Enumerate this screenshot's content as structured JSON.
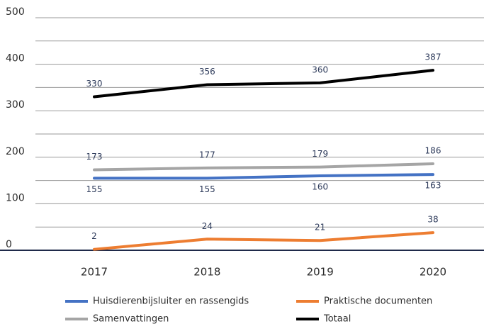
{
  "chart_data": {
    "type": "line",
    "categories": [
      "2017",
      "2018",
      "2019",
      "2020"
    ],
    "series": [
      {
        "name": "Huisdierenbijsluiter en rassengids",
        "color": "#4472c4",
        "values": [
          155,
          155,
          160,
          163
        ]
      },
      {
        "name": "Praktische documenten",
        "color": "#ed7d31",
        "values": [
          2,
          24,
          21,
          38
        ]
      },
      {
        "name": "Samenvattingen",
        "color": "#a5a5a5",
        "values": [
          173,
          177,
          179,
          186
        ]
      },
      {
        "name": "Totaal",
        "color": "#000000",
        "values": [
          330,
          356,
          360,
          387
        ]
      }
    ],
    "ylim": [
      0,
      500
    ],
    "yticks": [
      0,
      100,
      200,
      300,
      400,
      500
    ],
    "minor_yticks": [
      50,
      150,
      250,
      350,
      450
    ],
    "grid": true,
    "legend": "bottom"
  }
}
